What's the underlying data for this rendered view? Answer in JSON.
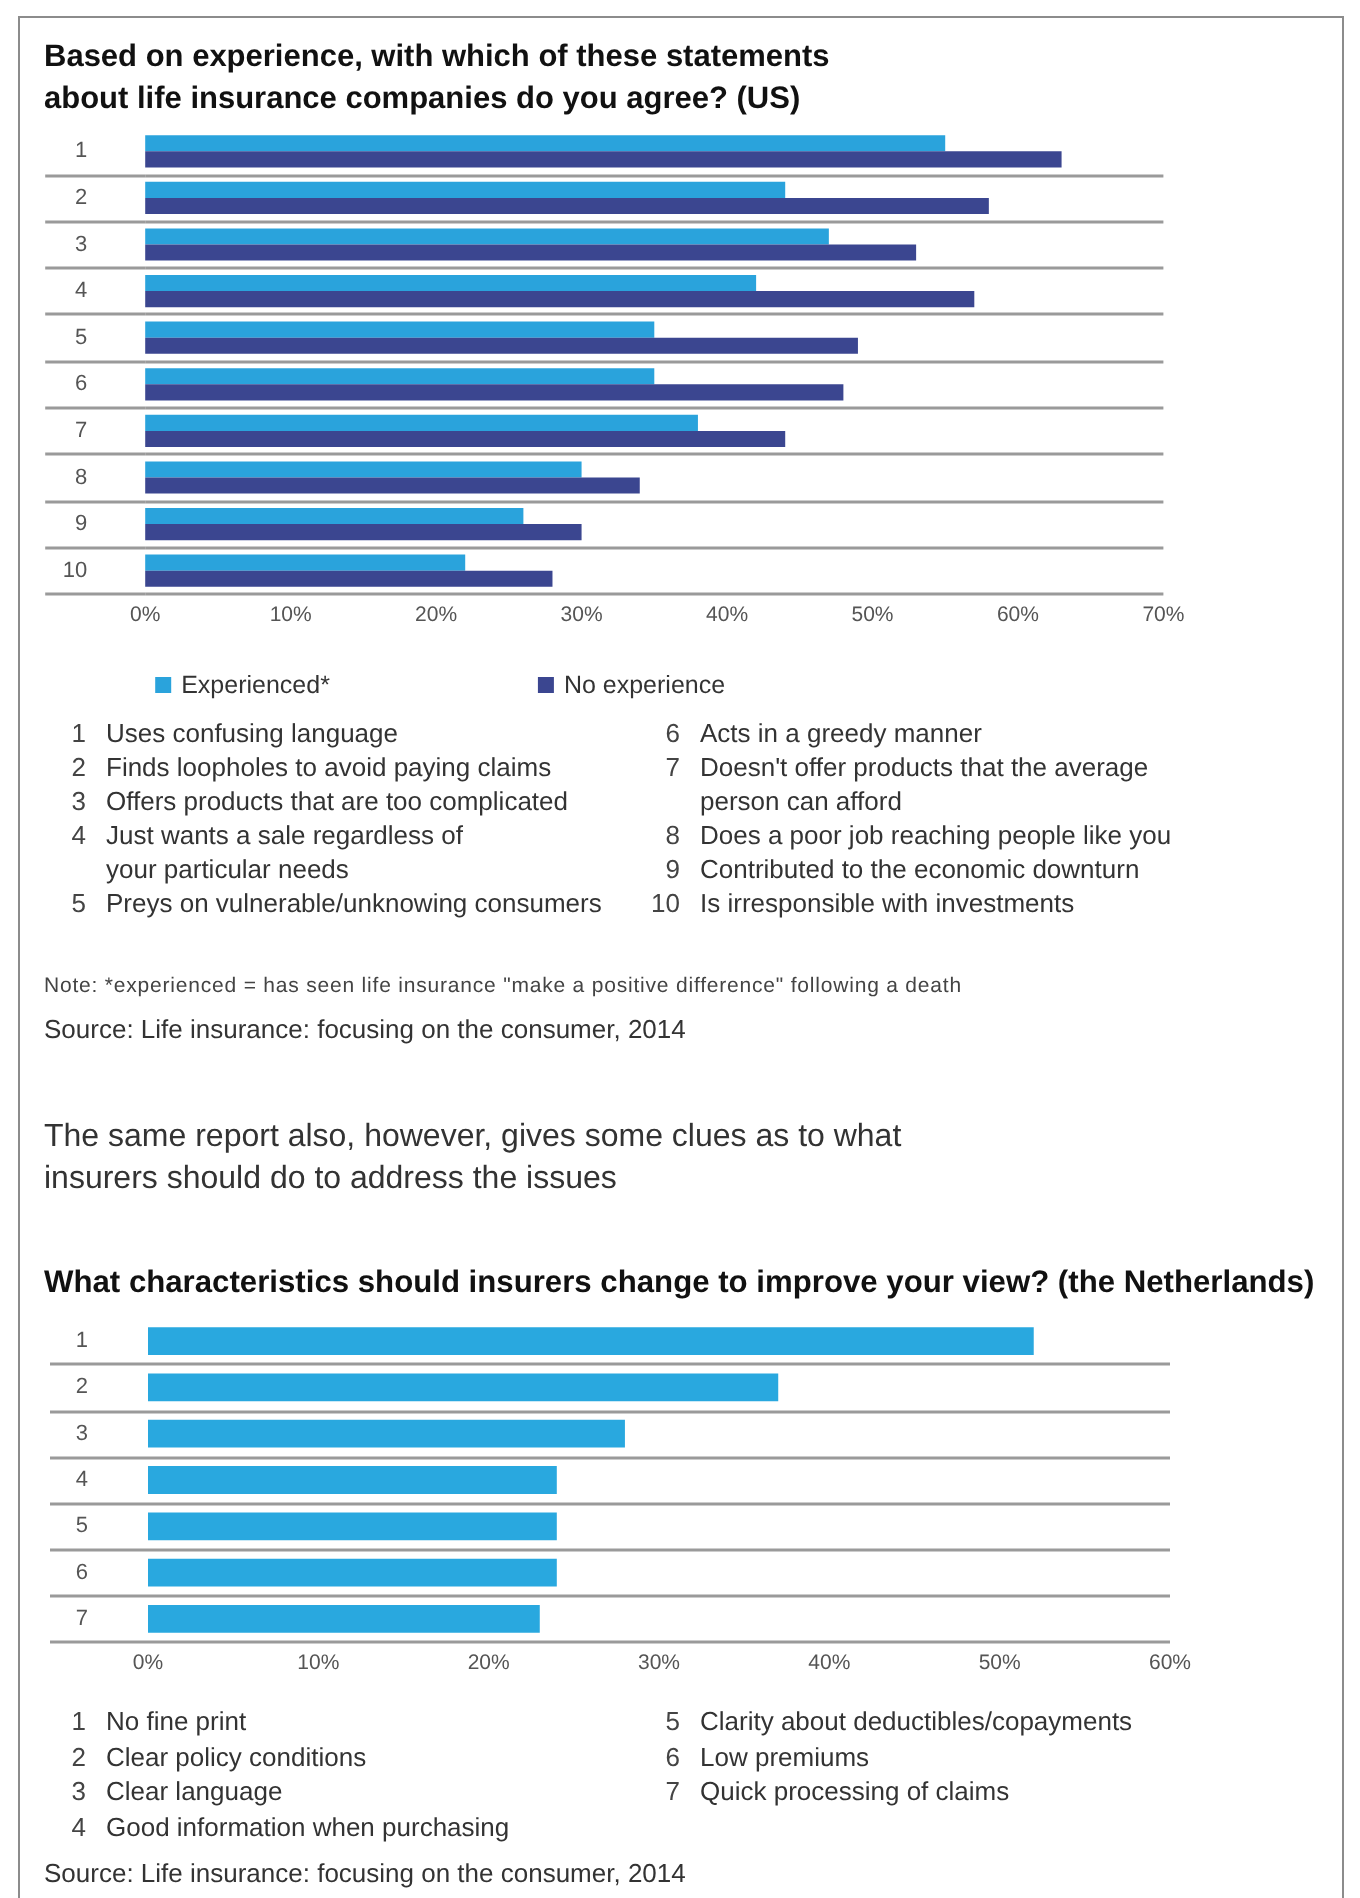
{
  "chart_data": [
    {
      "type": "bar",
      "orientation": "horizontal",
      "title": "Based on experience, with which of these statements about life insurance companies do you agree? (US)",
      "categories": [
        "1",
        "2",
        "3",
        "4",
        "5",
        "6",
        "7",
        "8",
        "9",
        "10"
      ],
      "series": [
        {
          "name": "Experienced*",
          "color": "#2aa3dc",
          "values": [
            55,
            44,
            47,
            42,
            35,
            35,
            38,
            30,
            26,
            22
          ]
        },
        {
          "name": "No experience",
          "color": "#3b4690",
          "values": [
            63,
            58,
            53,
            57,
            49,
            48,
            44,
            34,
            30,
            28
          ]
        }
      ],
      "xlim": [
        0,
        70
      ],
      "xticks": [
        {
          "value": 0,
          "label": "0%"
        },
        {
          "value": 10,
          "label": "10%"
        },
        {
          "value": 20,
          "label": "20%"
        },
        {
          "value": 30,
          "label": "30%"
        },
        {
          "value": 40,
          "label": "40%"
        },
        {
          "value": 50,
          "label": "50%"
        },
        {
          "value": 60,
          "label": "60%"
        },
        {
          "value": 70,
          "label": "70%"
        }
      ],
      "grid": "y",
      "legend": "bottom left",
      "annotations": [
        "1 Uses confusing language",
        "2 Finds loopholes to avoid paying claims",
        "3 Offers products that are too complicated",
        "4 Just wants a sale regardless of\nyour particular needs",
        "5 Preys on vulnerable/unknowing consumers",
        "6 Acts in a greedy manner",
        "7 Doesn't offer products that the average\nperson can afford",
        "8 Does a poor job reaching people like you",
        "9 Contributed to the economic downturn",
        "10 Is irresponsible with investments",
        "Note: *experienced = has seen life insurance \"make a positive difference\" following a death",
        "Source: Life insurance: focusing on the consumer, 2014"
      ]
    },
    {
      "type": "bar",
      "orientation": "horizontal",
      "subtitle": "The same report also, however, gives some clues as to what insurers should do to address the issues",
      "title": "What characteristics should insurers change to improve your view? (the Netherlands)",
      "categories": [
        "1",
        "2",
        "3",
        "4",
        "5",
        "6",
        "7"
      ],
      "values": [
        52,
        37,
        28,
        24,
        24,
        24,
        23
      ],
      "color": "#29a8df",
      "xlim": [
        0,
        60
      ],
      "xticks": [
        {
          "value": 0,
          "label": "0%"
        },
        {
          "value": 10,
          "label": "10%"
        },
        {
          "value": 20,
          "label": "20%"
        },
        {
          "value": 30,
          "label": "30%"
        },
        {
          "value": 40,
          "label": "40%"
        },
        {
          "value": 50,
          "label": "50%"
        },
        {
          "value": 60,
          "label": "60%"
        }
      ],
      "grid": "y",
      "annotations": [
        "1 No fine print",
        "2 Clear policy conditions",
        "3 Clear language",
        "4 Good information when purchasing",
        "5 Clarity about deductibles/copayments",
        "6 Low premiums",
        "7 Quick processing of claims",
        "Source: Life insurance: focusing on the consumer, 2014"
      ]
    }
  ]
}
